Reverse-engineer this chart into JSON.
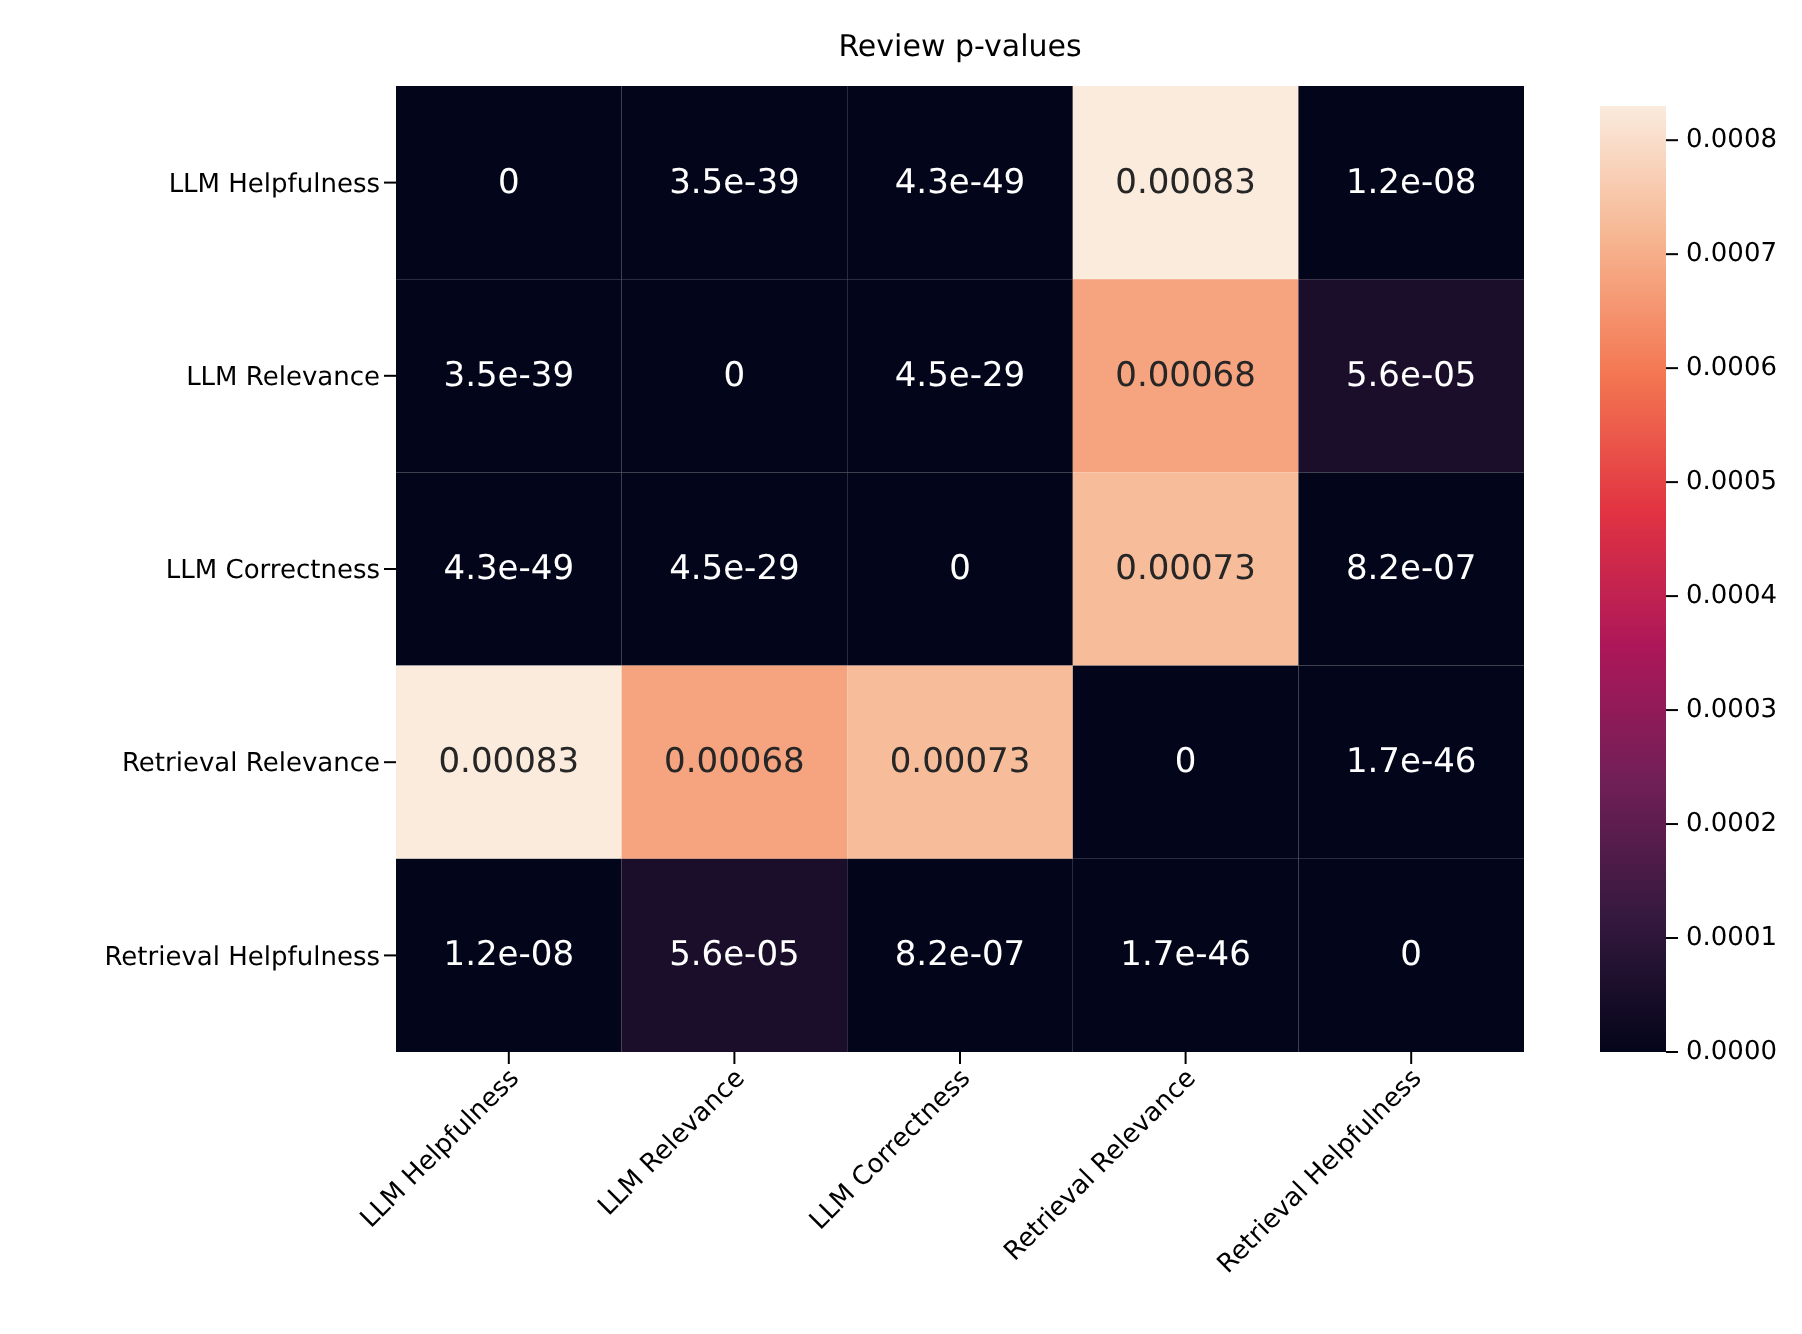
{
  "chart_data": {
    "type": "heatmap",
    "title": "Review p-values",
    "categories": [
      "LLM Helpfulness",
      "LLM Relevance",
      "LLM Correctness",
      "Retrieval Relevance",
      "Retrieval Helpfulness"
    ],
    "y_categories": [
      "LLM Helpfulness",
      "LLM Relevance",
      "LLM Correctness",
      "Retrieval Relevance",
      "Retrieval Helpfulness"
    ],
    "cells": [
      [
        0,
        3.5e-39,
        4.3e-49,
        0.00083,
        1.2e-08
      ],
      [
        3.5e-39,
        0,
        4.5e-29,
        0.00068,
        5.6e-05
      ],
      [
        4.3e-49,
        4.5e-29,
        0,
        0.00073,
        8.2e-07
      ],
      [
        0.00083,
        0.00068,
        0.00073,
        0,
        1.7e-46
      ],
      [
        1.2e-08,
        5.6e-05,
        8.2e-07,
        1.7e-46,
        0
      ]
    ],
    "cell_labels": [
      [
        "0",
        "3.5e-39",
        "4.3e-49",
        "0.00083",
        "1.2e-08"
      ],
      [
        "3.5e-39",
        "0",
        "4.5e-29",
        "0.00068",
        "5.6e-05"
      ],
      [
        "4.3e-49",
        "4.5e-29",
        "0",
        "0.00073",
        "8.2e-07"
      ],
      [
        "0.00083",
        "0.00068",
        "0.00073",
        "0",
        "1.7e-46"
      ],
      [
        "1.2e-08",
        "5.6e-05",
        "8.2e-07",
        "1.7e-46",
        "0"
      ]
    ],
    "clim": [
      0,
      0.00083
    ],
    "cticks": [
      {
        "value": 0,
        "label": "0.0000"
      },
      {
        "value": 0.0001,
        "label": "0.0001"
      },
      {
        "value": 0.0002,
        "label": "0.0002"
      },
      {
        "value": 0.0003,
        "label": "0.0003"
      },
      {
        "value": 0.0004,
        "label": "0.0004"
      },
      {
        "value": 0.0005,
        "label": "0.0005"
      },
      {
        "value": 0.0006,
        "label": "0.0006"
      },
      {
        "value": 0.0007,
        "label": "0.0007"
      },
      {
        "value": 0.0008,
        "label": "0.0008"
      }
    ]
  }
}
